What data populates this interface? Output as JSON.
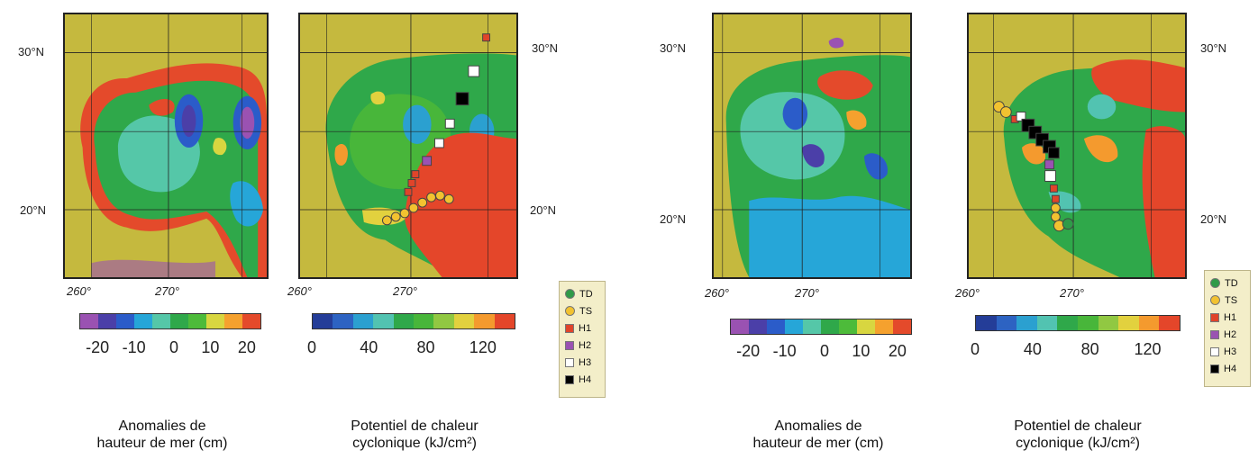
{
  "panels": {
    "left_pair": {
      "ssh_map": {
        "lat_labels": [
          "30°N",
          "20°N"
        ],
        "lon_labels": [
          "260°",
          "270°"
        ]
      },
      "tchp_map": {
        "lat_labels": [
          "30°N",
          "20°N"
        ],
        "lon_labels": [
          "260°",
          "270°"
        ]
      }
    },
    "right_pair": {
      "ssh_map": {
        "lat_labels": [
          "30°N",
          "20°N"
        ],
        "lon_labels": [
          "260°",
          "270°"
        ]
      },
      "tchp_map": {
        "lat_labels": [
          "30°N",
          "20°N"
        ],
        "lon_labels": [
          "260°",
          "270°"
        ]
      }
    }
  },
  "colorbars": {
    "ssh": {
      "ticks": [
        "-20",
        "-10",
        "0",
        "10",
        "20"
      ],
      "colors": [
        "#9a52b2",
        "#4b3fa8",
        "#2b5cc9",
        "#26a6d8",
        "#55c7a8",
        "#2fa84a",
        "#4dbb3a",
        "#d8d640",
        "#f5a12e",
        "#e44a2b"
      ]
    },
    "tchp": {
      "ticks": [
        "0",
        "40",
        "80",
        "120"
      ],
      "colors": [
        "#243d98",
        "#2d63c2",
        "#2ba0d0",
        "#52c3b1",
        "#2fa84a",
        "#48b63a",
        "#91c842",
        "#e2d13e",
        "#f49a2e",
        "#e4462a"
      ]
    }
  },
  "captions": {
    "ssh": [
      "Anomalies de",
      "hauteur de mer (cm)"
    ],
    "tchp": [
      "Potentiel de chaleur",
      "cyclonique (kJ/cm²)"
    ]
  },
  "legend": {
    "items": [
      {
        "label": "TD",
        "color": "#2f9a48",
        "shape": "circle"
      },
      {
        "label": "TS",
        "color": "#f2c230",
        "shape": "circle"
      },
      {
        "label": "H1",
        "color": "#e0442a",
        "shape": "square"
      },
      {
        "label": "H2",
        "color": "#9a52b2",
        "shape": "square"
      },
      {
        "label": "H3",
        "color": "#ffffff",
        "shape": "square"
      },
      {
        "label": "H4",
        "color": "#000000",
        "shape": "square"
      }
    ]
  },
  "colors": {
    "land": "#c5b93e",
    "ocean_base": "#2fa84a"
  }
}
